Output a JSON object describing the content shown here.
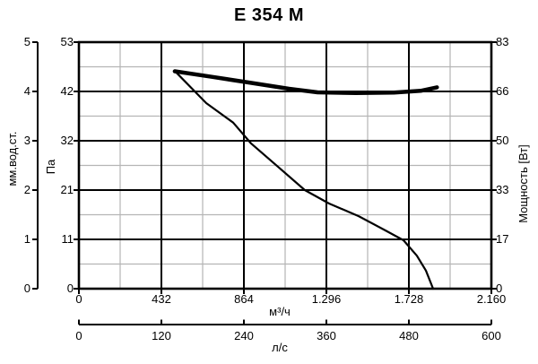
{
  "title": "E 354 M",
  "colors": {
    "background": "#ffffff",
    "text": "#000000",
    "curve": "#000000",
    "major_grid": "#000000",
    "minor_grid": "#b5b5b5"
  },
  "chart_data": {
    "type": "line",
    "title": "E 354 M",
    "grid": {
      "on": true,
      "x_major_step": 432,
      "x_minor_step": 216,
      "y_major_divisions": 5,
      "y_minor_divisions": 10,
      "major_color": "#000000",
      "minor_color": "#b5b5b5"
    },
    "axes": {
      "x_bottom_primary": {
        "label": "м³/ч",
        "range": [
          0,
          2160
        ],
        "ticks": [
          "0",
          "432",
          "864",
          "1.296",
          "1.728",
          "2.160"
        ]
      },
      "x_bottom_secondary": {
        "label": "л/с",
        "range": [
          0,
          600
        ],
        "ticks": [
          "0",
          "120",
          "240",
          "360",
          "480",
          "600"
        ]
      },
      "y_left_outer": {
        "label": "мм.вод.ст.",
        "range": [
          0,
          5
        ],
        "ticks": [
          "0",
          "1",
          "2",
          "3",
          "4",
          "5"
        ]
      },
      "y_left_inner": {
        "label": "Па",
        "range": [
          0,
          53
        ],
        "ticks": [
          "0",
          "11",
          "21",
          "32",
          "42",
          "53"
        ]
      },
      "y_right": {
        "label": "Мощность [Вт]",
        "range": [
          0,
          83
        ],
        "ticks": [
          "0",
          "17",
          "33",
          "50",
          "66",
          "83"
        ]
      }
    },
    "series": [
      {
        "name": "pressure-curve",
        "x_unit": "м³/ч",
        "y_unit": "Па",
        "y_axis": "y_left_inner",
        "stroke_width": 2.2,
        "points": [
          [
            502,
            46.8
          ],
          [
            667,
            39.9
          ],
          [
            808,
            35.7
          ],
          [
            902,
            31.2
          ],
          [
            1043,
            26.2
          ],
          [
            1183,
            21.2
          ],
          [
            1310,
            18.3
          ],
          [
            1465,
            15.6
          ],
          [
            1606,
            12.5
          ],
          [
            1700,
            10.4
          ],
          [
            1770,
            7.1
          ],
          [
            1817,
            3.9
          ],
          [
            1855,
            0
          ]
        ]
      },
      {
        "name": "power-curve",
        "x_unit": "м³/ч",
        "y_unit": "Вт",
        "y_axis": "y_right",
        "stroke_width": 4.5,
        "points": [
          [
            502,
            73.2
          ],
          [
            700,
            71.3
          ],
          [
            900,
            69.3
          ],
          [
            1100,
            67.3
          ],
          [
            1250,
            66.1
          ],
          [
            1450,
            65.9
          ],
          [
            1650,
            66.0
          ],
          [
            1790,
            66.6
          ],
          [
            1875,
            67.8
          ]
        ]
      }
    ]
  }
}
